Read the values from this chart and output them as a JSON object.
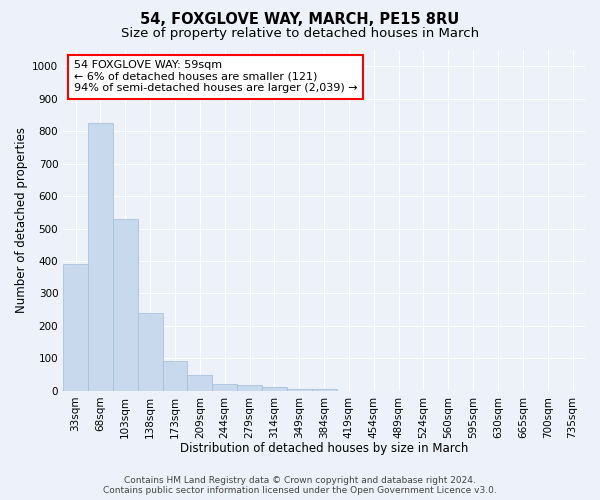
{
  "title": "54, FOXGLOVE WAY, MARCH, PE15 8RU",
  "subtitle": "Size of property relative to detached houses in March",
  "xlabel": "Distribution of detached houses by size in March",
  "ylabel": "Number of detached properties",
  "bar_color": "#c8d9ee",
  "bar_edge_color": "#a0bcd8",
  "categories": [
    "33sqm",
    "68sqm",
    "103sqm",
    "138sqm",
    "173sqm",
    "209sqm",
    "244sqm",
    "279sqm",
    "314sqm",
    "349sqm",
    "384sqm",
    "419sqm",
    "454sqm",
    "489sqm",
    "524sqm",
    "560sqm",
    "595sqm",
    "630sqm",
    "665sqm",
    "700sqm",
    "735sqm"
  ],
  "values": [
    390,
    825,
    530,
    240,
    93,
    50,
    20,
    17,
    12,
    7,
    5,
    0,
    0,
    0,
    0,
    0,
    0,
    0,
    0,
    0,
    0
  ],
  "ylim": [
    0,
    1050
  ],
  "yticks": [
    0,
    100,
    200,
    300,
    400,
    500,
    600,
    700,
    800,
    900,
    1000
  ],
  "annotation_box_text": [
    "54 FOXGLOVE WAY: 59sqm",
    "← 6% of detached houses are smaller (121)",
    "94% of semi-detached houses are larger (2,039) →"
  ],
  "background_color": "#edf2fa",
  "grid_color": "#ffffff",
  "footer_line1": "Contains HM Land Registry data © Crown copyright and database right 2024.",
  "footer_line2": "Contains public sector information licensed under the Open Government Licence v3.0.",
  "title_fontsize": 10.5,
  "subtitle_fontsize": 9.5,
  "annotation_fontsize": 8,
  "tick_fontsize": 7.5,
  "xlabel_fontsize": 8.5,
  "ylabel_fontsize": 8.5,
  "footer_fontsize": 6.5
}
